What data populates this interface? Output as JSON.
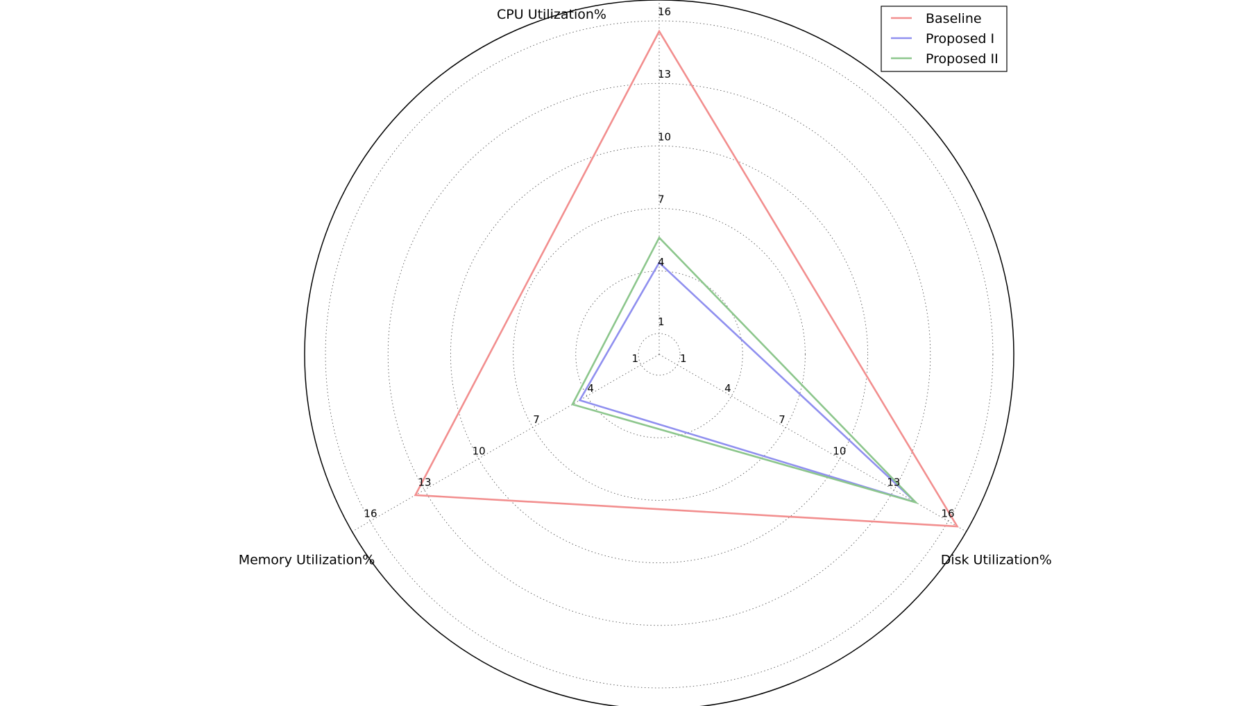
{
  "chart_data": {
    "type": "radar",
    "title": "",
    "axes": [
      "CPU Utilization%",
      "Disk Utilization%",
      "Memory Utilization%"
    ],
    "radial_ticks": [
      1,
      4,
      7,
      10,
      13,
      16
    ],
    "rlim": [
      0,
      17
    ],
    "grid": true,
    "legend_position": "top-right",
    "series": [
      {
        "name": "Baseline",
        "color": "#f28e8e",
        "values": [
          15.5,
          16.5,
          13.5
        ]
      },
      {
        "name": "Proposed I",
        "color": "#8f8fef",
        "values": [
          4.4,
          14.2,
          4.4
        ]
      },
      {
        "name": "Proposed II",
        "color": "#8cc68c",
        "values": [
          5.6,
          14.2,
          4.8
        ]
      }
    ]
  }
}
